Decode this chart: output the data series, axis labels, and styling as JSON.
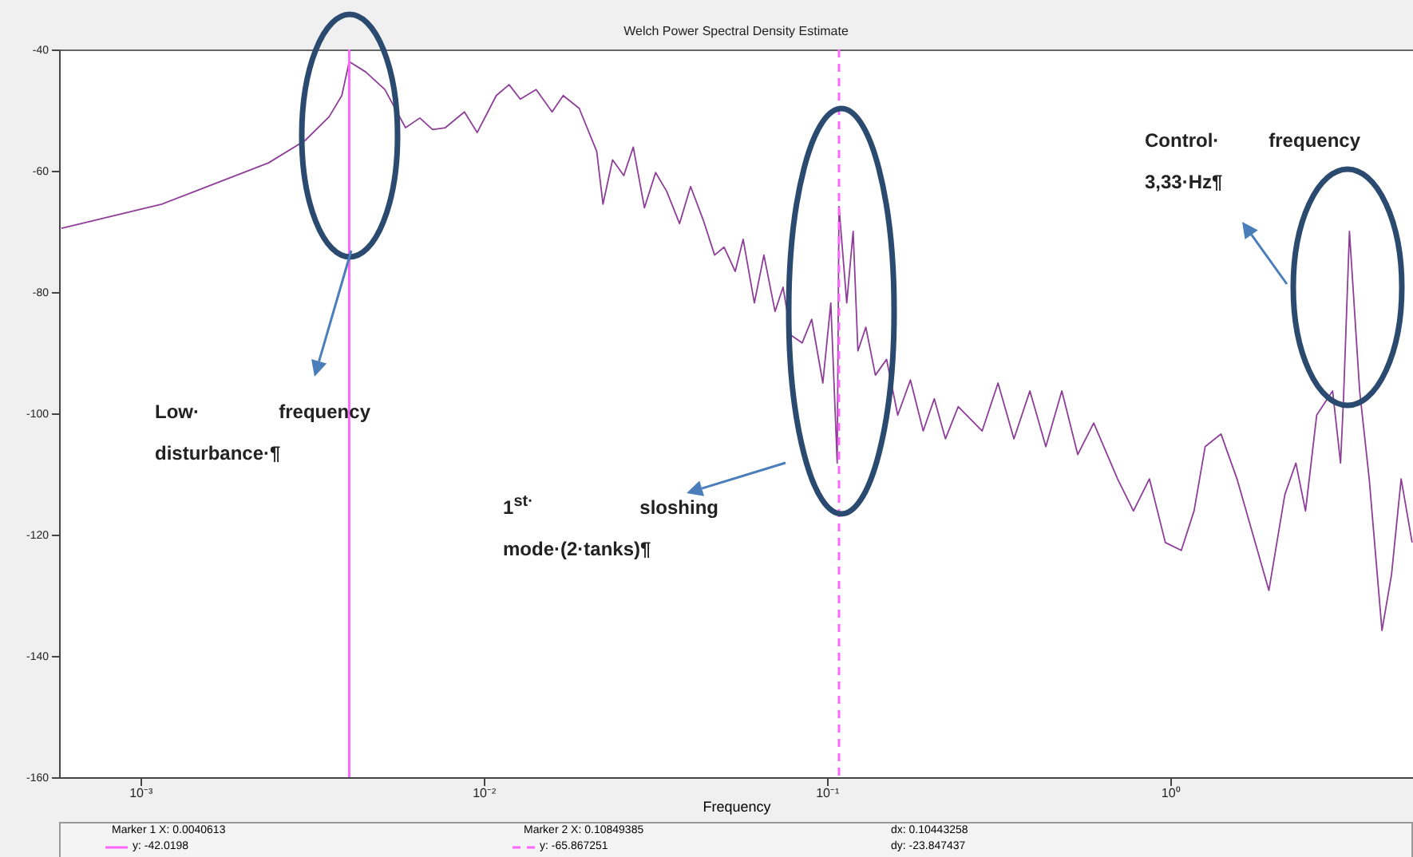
{
  "chart_data": {
    "type": "line",
    "title": "Welch Power Spectral Density Estimate",
    "xlabel": "Frequency",
    "log": "x",
    "grid": false,
    "marker": "none",
    "line_style": "solid",
    "xlim": [
      0.00058,
      5.1
    ],
    "xticks": [
      {
        "value": 0.001,
        "label": "10⁻³"
      },
      {
        "value": 0.01,
        "label": "10⁻²"
      },
      {
        "value": 0.1,
        "label": "10⁻¹"
      },
      {
        "value": 1,
        "label": "10⁰"
      }
    ],
    "ylim": [
      -160,
      -40
    ],
    "yticks": [
      -160,
      -140,
      -120,
      -100,
      -80,
      -60,
      -40
    ],
    "series": [
      {
        "color": "#8e3e98",
        "x": [
          0.000589,
          0.001155,
          0.002363,
          0.003022,
          0.003548,
          0.003864,
          0.0040613,
          0.004536,
          0.005157,
          0.005925,
          0.006522,
          0.007105,
          0.007738,
          0.008796,
          0.00958,
          0.01089,
          0.01187,
          0.01279,
          0.01423,
          0.01584,
          0.01706,
          0.01899,
          0.02136,
          0.02228,
          0.02376,
          0.02561,
          0.0273,
          0.02942,
          0.03171,
          0.03417,
          0.03723,
          0.0401,
          0.0437,
          0.0471,
          0.05021,
          0.05409,
          0.05705,
          0.06151,
          0.06557,
          0.07066,
          0.07454,
          0.07862,
          0.08475,
          0.09035,
          0.09736,
          0.1027,
          0.1072,
          0.10849385,
          0.1143,
          0.1193,
          0.1232,
          0.1299,
          0.1385,
          0.1493,
          0.1609,
          0.1752,
          0.1909,
          0.2056,
          0.2216,
          0.2414,
          0.2835,
          0.3153,
          0.3508,
          0.3905,
          0.4345,
          0.4837,
          0.5383,
          0.599,
          0.703,
          0.782,
          0.8703,
          0.9685,
          1.078,
          1.174,
          1.265,
          1.407,
          1.566,
          1.743,
          1.94,
          2.159,
          2.325,
          2.48,
          2.673,
          2.974,
          3.137,
          3.2,
          3.33,
          3.566,
          3.802,
          4.142,
          4.416,
          4.71,
          5.07
        ],
        "values": [
          -69.5,
          -65.5,
          -58.7,
          -55.0,
          -51.1,
          -47.6,
          -42.0,
          -43.7,
          -46.6,
          -52.9,
          -51.3,
          -53.2,
          -52.9,
          -50.3,
          -53.7,
          -47.6,
          -45.8,
          -48.2,
          -46.6,
          -50.3,
          -47.6,
          -49.7,
          -56.8,
          -65.5,
          -58.2,
          -60.8,
          -56.1,
          -66.1,
          -60.3,
          -63.4,
          -68.7,
          -62.6,
          -68.2,
          -73.9,
          -72.6,
          -76.6,
          -71.3,
          -81.8,
          -73.9,
          -83.2,
          -79.2,
          -87.1,
          -88.4,
          -84.5,
          -95.0,
          -81.8,
          -108.2,
          -65.9,
          -81.8,
          -70.0,
          -89.7,
          -85.8,
          -93.7,
          -91.1,
          -100.3,
          -94.5,
          -102.9,
          -97.6,
          -104.2,
          -98.9,
          -102.9,
          -95.0,
          -104.2,
          -96.3,
          -105.5,
          -96.3,
          -106.8,
          -101.6,
          -110.8,
          -116.1,
          -110.8,
          -121.3,
          -122.6,
          -116.1,
          -105.5,
          -103.4,
          -110.8,
          -120.0,
          -129.2,
          -113.4,
          -108.2,
          -116.1,
          -100.3,
          -96.3,
          -108.2,
          -97.6,
          -70.0,
          -96.3,
          -110.8,
          -135.8,
          -126.6,
          -110.8,
          -121.3
        ]
      }
    ],
    "ref_lines": [
      {
        "axis": "x",
        "value": 0.0040613,
        "color": "#ff66ff",
        "line_style": "solid"
      },
      {
        "axis": "x",
        "value": 0.10849385,
        "color": "#ff66ff",
        "line_style": "dashed"
      }
    ],
    "annotations": [
      "Low· frequency disturbance·¶",
      "1$^{st·}$ sloshing mode·(2·tanks)¶",
      "Control· frequency 3,33·Hz¶",
      "Marker 1 X: 0.0040613",
      "y: -42.0198",
      "Marker 2 X: 0.10849385",
      "y: -65.867251",
      "dx: 0.10443258",
      "dy: -23.847437"
    ]
  }
}
